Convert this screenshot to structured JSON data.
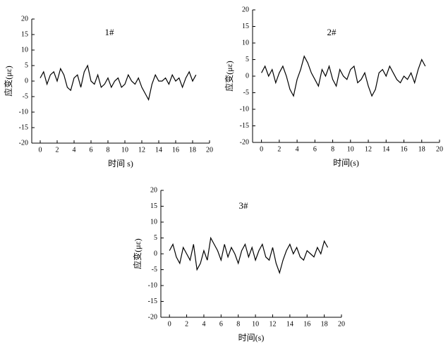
{
  "chart_data": [
    {
      "type": "line",
      "title": "1#",
      "x_label": "时间 s)",
      "y_label": "应变(με)",
      "xlim": [
        -1,
        20
      ],
      "ylim": [
        -20,
        20
      ],
      "xticks": [
        0,
        2,
        4,
        6,
        8,
        10,
        12,
        14,
        16,
        18,
        20
      ],
      "yticks": [
        -20,
        -15,
        -10,
        -5,
        0,
        5,
        10,
        15,
        20
      ],
      "color": "#000000",
      "x": [
        0,
        0.4,
        0.8,
        1.2,
        1.6,
        2,
        2.4,
        2.8,
        3.2,
        3.6,
        4,
        4.4,
        4.8,
        5.2,
        5.6,
        6,
        6.4,
        6.8,
        7.2,
        7.6,
        8,
        8.4,
        8.8,
        9.2,
        9.6,
        10,
        10.4,
        10.8,
        11.2,
        11.6,
        12,
        12.4,
        12.8,
        13.2,
        13.6,
        14,
        14.4,
        14.8,
        15.2,
        15.6,
        16,
        16.4,
        16.8,
        17.2,
        17.6,
        18,
        18.4
      ],
      "values": [
        1,
        3,
        -1,
        2,
        3,
        0,
        4,
        2,
        -2,
        -3,
        1,
        2,
        -2,
        3,
        5,
        0,
        -1,
        2,
        -2,
        -1,
        1,
        -2,
        0,
        1,
        -2,
        -1,
        2,
        0,
        -1,
        1,
        -2,
        -4,
        -6,
        -1,
        2,
        0,
        0,
        1,
        -1,
        2,
        0,
        1,
        -2,
        1,
        3,
        0,
        2
      ]
    },
    {
      "type": "line",
      "title": "2#",
      "x_label": "时间(s)",
      "y_label": "应变(με)",
      "xlim": [
        -1,
        20
      ],
      "ylim": [
        -20,
        20
      ],
      "xticks": [
        0,
        2,
        4,
        6,
        8,
        10,
        12,
        14,
        16,
        18,
        20
      ],
      "yticks": [
        -20,
        -15,
        -10,
        -5,
        0,
        5,
        10,
        15,
        20
      ],
      "color": "#000000",
      "x": [
        0,
        0.4,
        0.8,
        1.2,
        1.6,
        2,
        2.4,
        2.8,
        3.2,
        3.6,
        4,
        4.4,
        4.8,
        5.2,
        5.6,
        6,
        6.4,
        6.8,
        7.2,
        7.6,
        8,
        8.4,
        8.8,
        9.2,
        9.6,
        10,
        10.4,
        10.8,
        11.2,
        11.6,
        12,
        12.4,
        12.8,
        13.2,
        13.6,
        14,
        14.4,
        14.8,
        15.2,
        15.6,
        16,
        16.4,
        16.8,
        17.2,
        17.6,
        18,
        18.4
      ],
      "values": [
        1,
        3,
        0,
        2,
        -2,
        1,
        3,
        0,
        -4,
        -6,
        -1,
        2,
        6,
        4,
        1,
        -1,
        -3,
        2,
        0,
        3,
        -1,
        -3,
        2,
        0,
        -1,
        2,
        3,
        -2,
        -1,
        1,
        -3,
        -6,
        -4,
        1,
        2,
        0,
        3,
        1,
        -1,
        -2,
        0,
        -1,
        1,
        -2,
        2,
        5,
        3
      ]
    },
    {
      "type": "line",
      "title": "3#",
      "x_label": "时间(s)",
      "y_label": "应变(με)",
      "xlim": [
        -1,
        20
      ],
      "ylim": [
        -20,
        20
      ],
      "xticks": [
        0,
        2,
        4,
        6,
        8,
        10,
        12,
        14,
        16,
        18,
        20
      ],
      "yticks": [
        -20,
        -15,
        -10,
        -5,
        0,
        5,
        10,
        15,
        20
      ],
      "color": "#000000",
      "x": [
        0,
        0.4,
        0.8,
        1.2,
        1.6,
        2,
        2.4,
        2.8,
        3.2,
        3.6,
        4,
        4.4,
        4.8,
        5.2,
        5.6,
        6,
        6.4,
        6.8,
        7.2,
        7.6,
        8,
        8.4,
        8.8,
        9.2,
        9.6,
        10,
        10.4,
        10.8,
        11.2,
        11.6,
        12,
        12.4,
        12.8,
        13.2,
        13.6,
        14,
        14.4,
        14.8,
        15.2,
        15.6,
        16,
        16.4,
        16.8,
        17.2,
        17.6,
        18,
        18.4
      ],
      "values": [
        1,
        3,
        -1,
        -3,
        2,
        0,
        -2,
        3,
        -5,
        -3,
        1,
        -2,
        5,
        3,
        1,
        -2,
        3,
        -1,
        2,
        0,
        -3,
        1,
        3,
        -1,
        2,
        -2,
        1,
        3,
        -1,
        -2,
        2,
        -3,
        -6,
        -2,
        1,
        3,
        0,
        2,
        -1,
        -2,
        1,
        0,
        -1,
        2,
        0,
        4,
        2
      ]
    }
  ]
}
